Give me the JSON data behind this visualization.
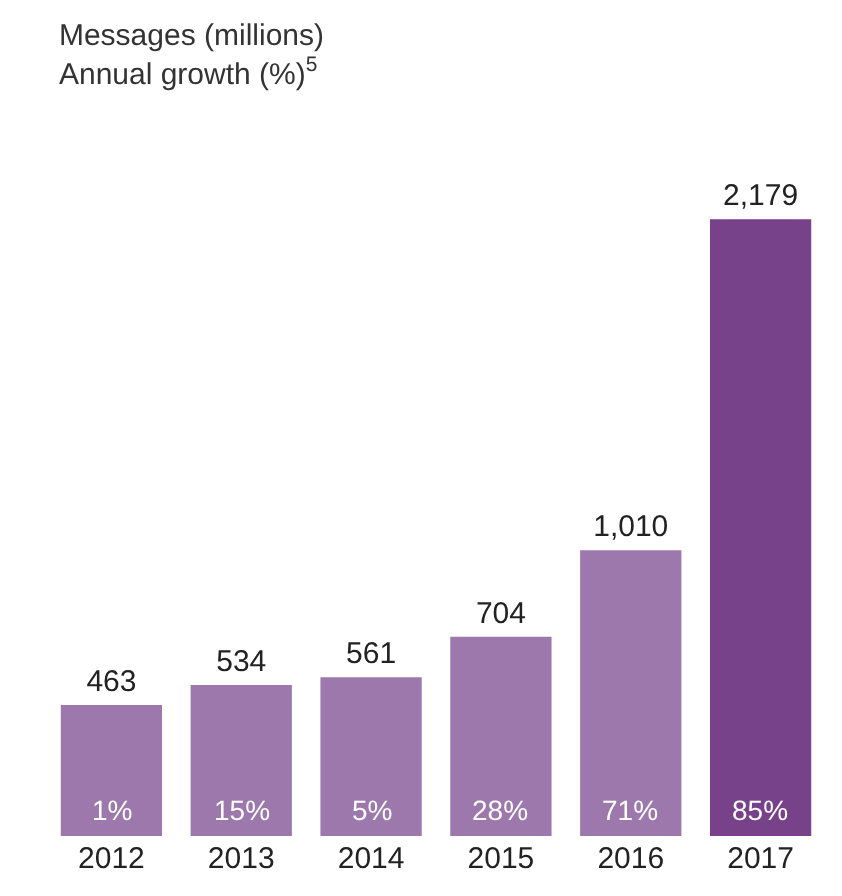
{
  "chart_data": {
    "type": "bar",
    "title": "Messages (millions)",
    "subtitle": "Annual growth (%)$^{5}$",
    "categories": [
      "2012",
      "2013",
      "2014",
      "2015",
      "2016",
      "2017"
    ],
    "values": [
      463,
      534,
      561,
      704,
      1010,
      2179
    ],
    "value_labels": [
      "463",
      "534",
      "561",
      "704",
      "1,010",
      "2,179"
    ],
    "colors": [
      "#9c78ad",
      "#9c78ad",
      "#9c78ad",
      "#9c78ad",
      "#9c78ad",
      "#77428a"
    ],
    "annotations": [
      "1%",
      "15%",
      "5%",
      "28%",
      "71%",
      "85%"
    ]
  }
}
